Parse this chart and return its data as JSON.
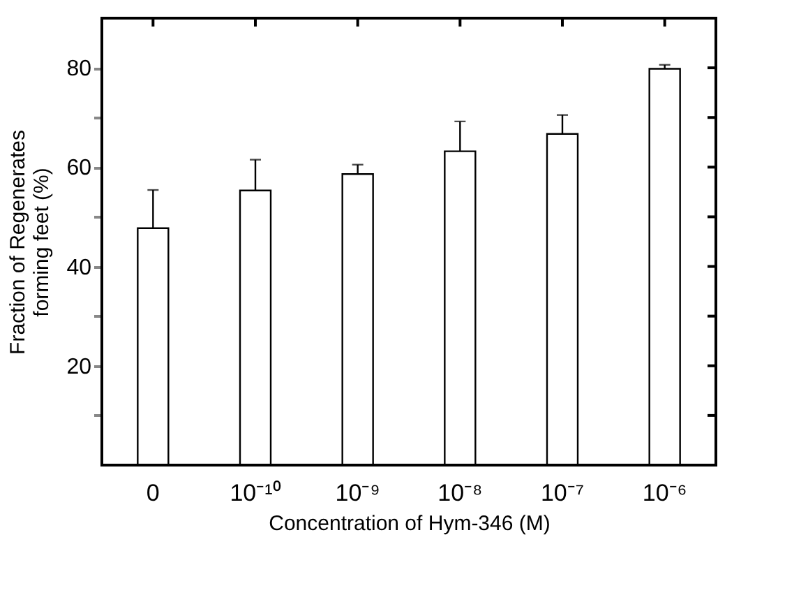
{
  "chart_data": {
    "type": "bar",
    "xlabel": "Concentration of Hym-346  (M)",
    "ylabel": "Fraction of Regenerates\nforming feet  (%)",
    "categories": [
      "0",
      "10⁻¹⁰",
      "10⁻⁹",
      "10⁻⁸",
      "10⁻⁷",
      "10⁻⁶"
    ],
    "values": [
      47.7,
      55.3,
      58.6,
      63.2,
      66.7,
      79.8
    ],
    "errors": [
      [
        47.7,
        55.4
      ],
      [
        55.3,
        61.5
      ],
      [
        58.6,
        60.5
      ],
      [
        63.2,
        69.2
      ],
      [
        66.7,
        70.5
      ],
      [
        79.8,
        80.6
      ]
    ],
    "color": "#ffffff",
    "ylim": [
      0,
      90
    ],
    "yticks": [
      {
        "value": 10,
        "label": null
      },
      20,
      {
        "value": 30,
        "label": null
      },
      40,
      {
        "value": 50,
        "label": null
      },
      60,
      {
        "value": 70,
        "label": null
      },
      80
    ],
    "grid": false
  }
}
